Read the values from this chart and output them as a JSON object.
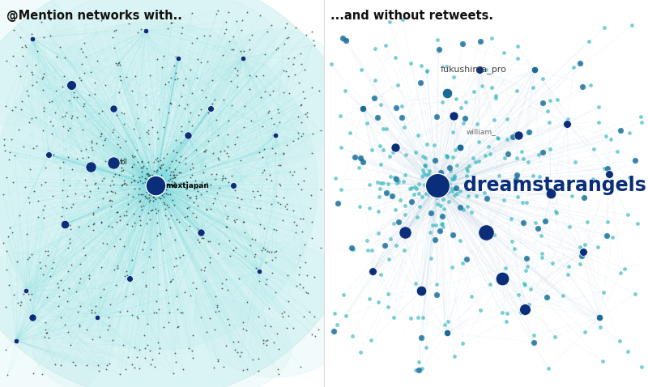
{
  "title_left": "@Mention networks with..",
  "title_right": "...and without retweets.",
  "bg_color": "#ffffff",
  "left_bg": "#c8eeee",
  "right_bg": "#f8fbff",
  "node_color_dark": "#0a2e7a",
  "node_color_mid": "#1a6a9a",
  "node_color_teal": "#20b0b8",
  "node_color_light_teal": "#60d0d8",
  "edge_color_left": "#70dde0",
  "edge_color_right": "#b0cce0",
  "label_mextjapan": "mextjapan",
  "label_fol": "fol",
  "label_dreamstar": "dreamstarangels",
  "label_fukushima": "fukushima_pro",
  "label_william": "william_",
  "divider_color": "#dddddd"
}
